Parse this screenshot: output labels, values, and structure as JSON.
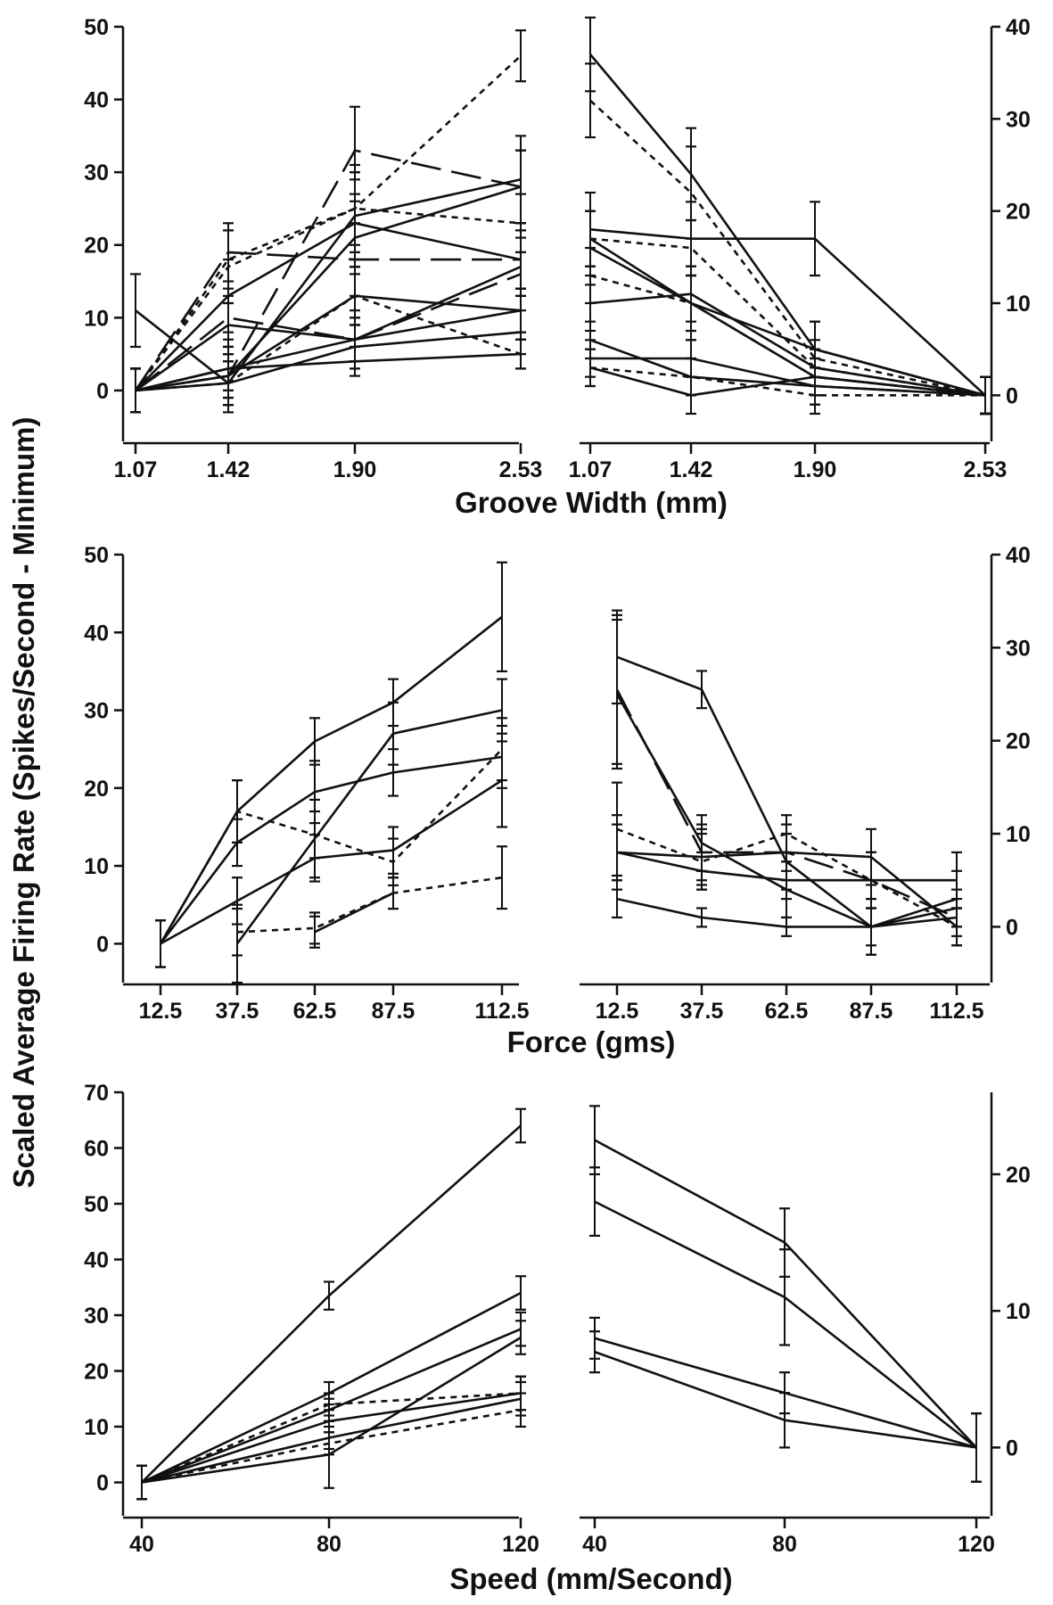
{
  "ylabel": "Scaled Average Firing Rate (Spikes/Second - Minimum)",
  "chart_data": [
    {
      "type": "line",
      "panel": "groove-increasing",
      "x": [
        1.07,
        1.42,
        1.9,
        2.53
      ],
      "xticks": [
        "1.07",
        "1.42",
        "1.90",
        "2.53"
      ],
      "xlabel": "",
      "ylim": [
        -7,
        50
      ],
      "yticks": [
        0,
        10,
        20,
        30,
        40,
        50
      ],
      "y_axis_side": "left",
      "series": [
        {
          "style": "dotted",
          "values": [
            0,
            17,
            25,
            46
          ],
          "err": [
            3,
            5,
            6,
            3.5
          ]
        },
        {
          "style": "dotted",
          "values": [
            0,
            18,
            25,
            23
          ],
          "err": [
            3,
            4,
            5,
            4
          ]
        },
        {
          "style": "dotted",
          "values": [
            0,
            1,
            13,
            5
          ],
          "err": [
            3,
            3,
            4,
            2
          ]
        },
        {
          "style": "dashed",
          "values": [
            0,
            19,
            18,
            18
          ],
          "err": [
            3,
            4,
            5,
            4
          ]
        },
        {
          "style": "dashed",
          "values": [
            0,
            2,
            33,
            28
          ],
          "err": [
            3,
            3,
            6,
            5
          ]
        },
        {
          "style": "dashed",
          "values": [
            0,
            10,
            7,
            16
          ],
          "err": [
            3,
            3,
            3,
            3
          ]
        },
        {
          "style": "solid",
          "values": [
            11,
            1,
            24,
            29
          ],
          "err": [
            5,
            4,
            6,
            6
          ]
        },
        {
          "style": "solid",
          "values": [
            0,
            13,
            23,
            18
          ],
          "err": [
            3,
            5,
            6,
            4
          ]
        },
        {
          "style": "solid",
          "values": [
            0,
            9,
            7,
            11
          ],
          "err": [
            3,
            3,
            4,
            3
          ]
        },
        {
          "style": "solid",
          "values": [
            0,
            2,
            21,
            28
          ],
          "err": [
            3,
            3,
            5,
            5
          ]
        },
        {
          "style": "solid",
          "values": [
            0,
            2,
            13,
            11
          ],
          "err": [
            3,
            3,
            4,
            3
          ]
        },
        {
          "style": "solid",
          "values": [
            0,
            3,
            7,
            17
          ],
          "err": [
            3,
            3,
            3,
            4
          ]
        },
        {
          "style": "solid",
          "values": [
            0,
            1,
            6,
            8
          ],
          "err": [
            3,
            3,
            3,
            3
          ]
        },
        {
          "style": "solid",
          "values": [
            0,
            3,
            4,
            5
          ],
          "err": [
            3,
            3,
            2,
            2
          ]
        }
      ]
    },
    {
      "type": "line",
      "panel": "groove-decreasing",
      "x": [
        1.07,
        1.42,
        1.9,
        2.53
      ],
      "xticks": [
        "1.07",
        "1.42",
        "1.90",
        "2.53"
      ],
      "xlabel": "Groove Width (mm)",
      "ylim": [
        -5,
        40
      ],
      "yticks": [
        0,
        10,
        20,
        30,
        40
      ],
      "y_axis_side": "right",
      "series": [
        {
          "style": "solid",
          "values": [
            37,
            24,
            5,
            0
          ],
          "err": [
            4,
            5,
            3,
            2
          ]
        },
        {
          "style": "dotted",
          "values": [
            32,
            22,
            4,
            0
          ],
          "err": [
            4,
            5,
            2,
            2
          ]
        },
        {
          "style": "solid",
          "values": [
            18,
            17,
            17,
            0
          ],
          "err": [
            4,
            4,
            4,
            2
          ]
        },
        {
          "style": "solid",
          "values": [
            16,
            10,
            5,
            0
          ],
          "err": [
            4,
            4,
            3,
            2
          ]
        },
        {
          "style": "dotted",
          "values": [
            17,
            16,
            3,
            0
          ],
          "err": [
            3,
            3,
            2,
            2
          ]
        },
        {
          "style": "dotted",
          "values": [
            13,
            10,
            2,
            0
          ],
          "err": [
            3,
            3,
            2,
            2
          ]
        },
        {
          "style": "solid",
          "values": [
            10,
            11,
            3,
            0
          ],
          "err": [
            3,
            3,
            2,
            2
          ]
        },
        {
          "style": "solid",
          "values": [
            17,
            10,
            2,
            0
          ],
          "err": [
            3,
            3,
            2,
            2
          ]
        },
        {
          "style": "solid",
          "values": [
            6,
            2,
            1,
            0
          ],
          "err": [
            2,
            2,
            2,
            2
          ]
        },
        {
          "style": "solid",
          "values": [
            4,
            4,
            1,
            0
          ],
          "err": [
            2,
            2,
            2,
            2
          ]
        },
        {
          "style": "dotted",
          "values": [
            3,
            2,
            0,
            0
          ],
          "err": [
            2,
            2,
            2,
            2
          ]
        },
        {
          "style": "solid",
          "values": [
            3,
            0,
            2,
            0
          ],
          "err": [
            2,
            2,
            2,
            2
          ]
        }
      ]
    },
    {
      "type": "line",
      "panel": "force-increasing",
      "x": [
        12.5,
        37.5,
        62.5,
        87.5,
        112.5
      ],
      "xticks": [
        "12.5",
        "37.5",
        "62.5",
        "87.5",
        "112.5"
      ],
      "xlabel": "",
      "ylim": [
        -5,
        50
      ],
      "yticks": [
        0,
        10,
        20,
        30,
        40,
        50
      ],
      "y_axis_side": "left",
      "series": [
        {
          "style": "solid",
          "values": [
            0,
            17,
            26,
            31,
            42
          ],
          "err": [
            3,
            4,
            3,
            3,
            7
          ]
        },
        {
          "style": "solid",
          "values": [
            0,
            13,
            19.5,
            22,
            24
          ],
          "err": [
            3,
            3,
            4,
            3,
            4
          ]
        },
        {
          "style": "dotted",
          "values": [
            0,
            17,
            14,
            10.5,
            25
          ],
          "err": [
            3,
            4,
            3,
            3,
            4
          ]
        },
        {
          "style": "solid",
          "values": [
            null,
            0,
            13.5,
            27,
            30
          ],
          "err": [
            0,
            5,
            5,
            4,
            4
          ]
        },
        {
          "style": "solid",
          "values": [
            0,
            5.5,
            11,
            12,
            21
          ],
          "err": [
            3,
            3,
            3,
            3,
            6
          ]
        },
        {
          "style": "dotted",
          "values": [
            null,
            1.5,
            2,
            6.5,
            8.5
          ],
          "err": [
            0,
            3,
            2,
            2,
            4
          ]
        },
        {
          "style": "solid",
          "values": [
            null,
            null,
            1.5,
            6.5,
            null
          ],
          "err": [
            0,
            0,
            2,
            2,
            0
          ]
        }
      ]
    },
    {
      "type": "line",
      "panel": "force-decreasing",
      "x": [
        12.5,
        37.5,
        62.5,
        87.5,
        112.5
      ],
      "xticks": [
        "12.5",
        "37.5",
        "62.5",
        "87.5",
        "112.5"
      ],
      "xlabel": "Force (gms)",
      "ylim": [
        -6,
        40
      ],
      "yticks": [
        0,
        10,
        20,
        30,
        40
      ],
      "y_axis_side": "right",
      "series": [
        {
          "style": "solid",
          "values": [
            29,
            25.5,
            7,
            0,
            3
          ],
          "err": [
            5,
            2,
            3,
            3,
            3
          ]
        },
        {
          "style": "dashed",
          "values": [
            25.5,
            8,
            8,
            5,
            1
          ],
          "err": [
            8,
            3,
            3,
            3,
            2
          ]
        },
        {
          "style": "solid",
          "values": [
            25,
            9,
            4,
            0,
            2
          ],
          "err": [
            8,
            3,
            3,
            3,
            2
          ]
        },
        {
          "style": "dotted",
          "values": [
            10.5,
            7,
            10,
            5,
            0
          ],
          "err": [
            5,
            3,
            2,
            3,
            2
          ]
        },
        {
          "style": "solid",
          "values": [
            8,
            7.5,
            8,
            7.5,
            0
          ],
          "err": [
            4,
            3,
            2,
            3,
            2
          ]
        },
        {
          "style": "solid",
          "values": [
            8,
            6,
            5,
            5,
            5
          ],
          "err": [
            3,
            2,
            2,
            3,
            3
          ]
        },
        {
          "style": "solid",
          "values": [
            3,
            1,
            0,
            0,
            1
          ],
          "err": [
            2,
            1,
            1,
            2,
            1
          ]
        }
      ]
    },
    {
      "type": "line",
      "panel": "speed-increasing",
      "x": [
        40,
        80,
        120
      ],
      "xticks": [
        "40",
        "80",
        "120"
      ],
      "xlabel": "",
      "ylim": [
        -6,
        70
      ],
      "yticks": [
        0,
        10,
        20,
        30,
        40,
        50,
        60,
        70
      ],
      "y_axis_side": "left",
      "series": [
        {
          "style": "solid",
          "values": [
            0,
            33.5,
            64
          ],
          "err": [
            3,
            2.5,
            3
          ]
        },
        {
          "style": "solid",
          "values": [
            0,
            16,
            34
          ],
          "err": [
            3,
            2,
            3
          ]
        },
        {
          "style": "solid",
          "values": [
            0,
            13,
            27.5
          ],
          "err": [
            3,
            2,
            3
          ]
        },
        {
          "style": "solid",
          "values": [
            0,
            5,
            26
          ],
          "err": [
            3,
            6,
            3
          ]
        },
        {
          "style": "dotted",
          "values": [
            0,
            14,
            16
          ],
          "err": [
            3,
            2,
            3
          ]
        },
        {
          "style": "solid",
          "values": [
            0,
            11,
            16
          ],
          "err": [
            3,
            2,
            3
          ]
        },
        {
          "style": "solid",
          "values": [
            0,
            8,
            15
          ],
          "err": [
            3,
            2,
            3
          ]
        },
        {
          "style": "dotted",
          "values": [
            0,
            7,
            13
          ],
          "err": [
            3,
            2,
            3
          ]
        }
      ]
    },
    {
      "type": "line",
      "panel": "speed-decreasing",
      "x": [
        40,
        80,
        120
      ],
      "xticks": [
        "40",
        "80",
        "120"
      ],
      "xlabel": "Speed (mm/Second)",
      "ylim": [
        -5,
        26
      ],
      "yticks": [
        0,
        10,
        20
      ],
      "y_axis_side": "right",
      "series": [
        {
          "style": "solid",
          "values": [
            22.5,
            15,
            0
          ],
          "err": [
            2.5,
            2.5,
            2.5
          ]
        },
        {
          "style": "solid",
          "values": [
            18,
            11,
            0
          ],
          "err": [
            2.5,
            3.5,
            2.5
          ]
        },
        {
          "style": "solid",
          "values": [
            8,
            4,
            0
          ],
          "err": [
            1.5,
            1.5,
            2.5
          ]
        },
        {
          "style": "solid",
          "values": [
            7,
            2,
            0
          ],
          "err": [
            1.5,
            2,
            2.5
          ]
        }
      ]
    }
  ]
}
